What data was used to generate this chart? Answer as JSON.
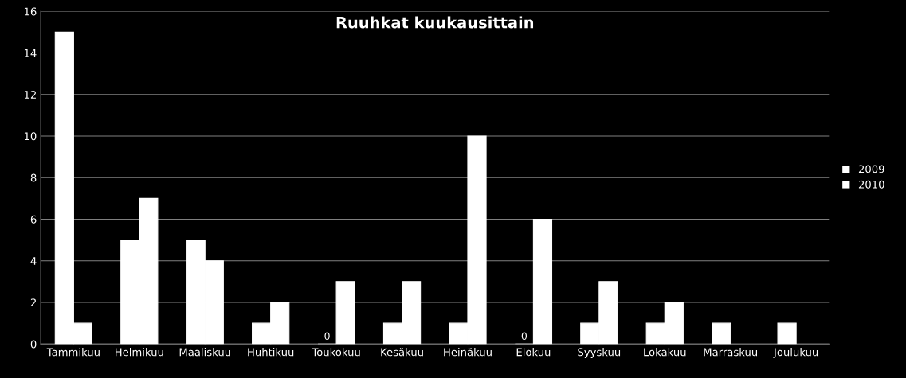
{
  "chart_data": {
    "type": "bar",
    "title": "Ruuhkat kuukausittain",
    "categories": [
      "Tammikuu",
      "Helmikuu",
      "Maaliskuu",
      "Huhtikuu",
      "Toukokuu",
      "Kesäkuu",
      "Heinäkuu",
      "Elokuu",
      "Syyskuu",
      "Lokakuu",
      "Marraskuu",
      "Joulukuu"
    ],
    "series": [
      {
        "name": "2009",
        "color": "#ffffff",
        "values": [
          15,
          5,
          5,
          1,
          0,
          1,
          1,
          0,
          1,
          1,
          1,
          1
        ],
        "value_labels": [
          null,
          null,
          null,
          null,
          "0",
          null,
          null,
          "0",
          null,
          null,
          null,
          null
        ]
      },
      {
        "name": "2010",
        "color": "#ffffff",
        "values": [
          1,
          7,
          4,
          2,
          3,
          3,
          10,
          6,
          3,
          2,
          null,
          null
        ]
      }
    ],
    "ylim": [
      0,
      16
    ],
    "yticks": [
      0,
      2,
      4,
      6,
      8,
      10,
      12,
      14,
      16
    ],
    "grid": "y",
    "legend": "right"
  }
}
